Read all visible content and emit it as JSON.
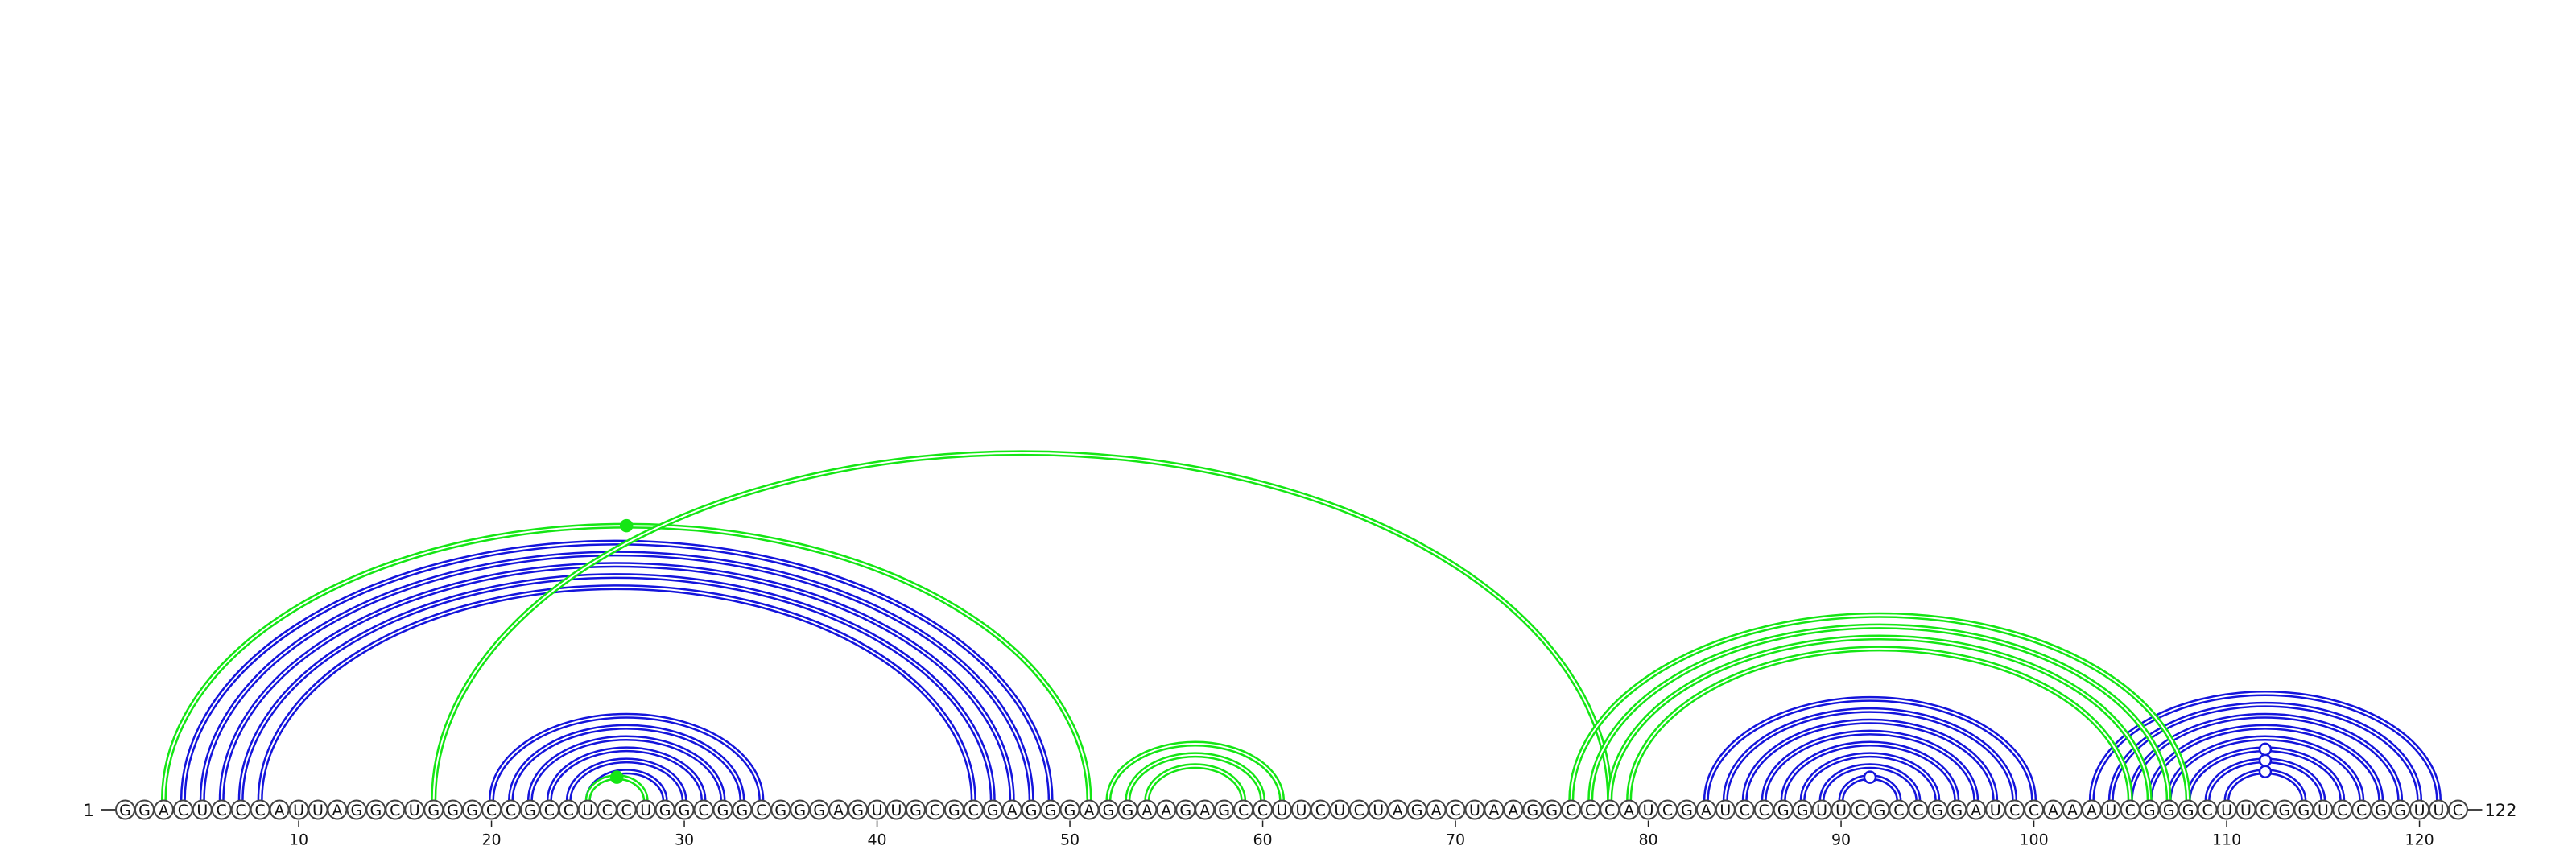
{
  "diagram": {
    "type": "rna-arc-diagram",
    "sequence": "GGACUCCCAUUAGGCUGGGCCGCCUCCUGGCGGCGGGAGUUGCGCGAGGGAGGAAGAGCCUUCUCUAGACUAAGGCCCAUCGAUCCGGUUCGCCGGAUCCAAAUCGGGCUUCGGUCCGGUUC",
    "length": 122,
    "start_label": "1",
    "end_label": "122",
    "tick_labels": [
      "10",
      "20",
      "30",
      "40",
      "50",
      "60",
      "70",
      "80",
      "90",
      "100",
      "110",
      "120"
    ],
    "tick_positions": [
      10,
      20,
      30,
      40,
      50,
      60,
      70,
      80,
      90,
      100,
      110,
      120
    ],
    "colors": {
      "stem": "#1414dc",
      "pseudoknot": "#14e614",
      "nucleotide_border": "#444444"
    },
    "groups": [
      {
        "name": "stem-1",
        "color": "stem",
        "pairs": [
          [
            4,
            49
          ],
          [
            5,
            48
          ],
          [
            6,
            47
          ],
          [
            7,
            46
          ],
          [
            8,
            45
          ]
        ]
      },
      {
        "name": "stem-2",
        "color": "stem",
        "pairs": [
          [
            20,
            34
          ],
          [
            21,
            33
          ],
          [
            22,
            32
          ],
          [
            23,
            31
          ],
          [
            24,
            30
          ],
          [
            25,
            29
          ]
        ]
      },
      {
        "name": "stem-3",
        "color": "stem",
        "pairs": [
          [
            83,
            100
          ],
          [
            84,
            99
          ],
          [
            85,
            98
          ],
          [
            86,
            97
          ],
          [
            87,
            96
          ],
          [
            88,
            95
          ],
          [
            89,
            94
          ],
          [
            90,
            93
          ]
        ]
      },
      {
        "name": "stem-4",
        "color": "stem",
        "pairs": [
          [
            103,
            121
          ],
          [
            104,
            120
          ],
          [
            105,
            119
          ],
          [
            106,
            118
          ],
          [
            107,
            117
          ],
          [
            108,
            116
          ],
          [
            109,
            115
          ],
          [
            110,
            114
          ]
        ]
      },
      {
        "name": "helix-green-1",
        "color": "pseudoknot",
        "pairs": [
          [
            3,
            51
          ],
          [
            25,
            28
          ]
        ]
      },
      {
        "name": "helix-green-2",
        "color": "pseudoknot",
        "pairs": [
          [
            17,
            78
          ]
        ]
      },
      {
        "name": "helix-green-3",
        "color": "pseudoknot",
        "pairs": [
          [
            52,
            61
          ],
          [
            53,
            60
          ],
          [
            54,
            59
          ]
        ]
      },
      {
        "name": "helix-green-4",
        "color": "pseudoknot",
        "pairs": [
          [
            76,
            108
          ],
          [
            77,
            107
          ],
          [
            78,
            106
          ],
          [
            79,
            105
          ]
        ]
      }
    ],
    "markers": [
      {
        "between": [
          3,
          51
        ],
        "style": "filled",
        "color": "pseudoknot"
      },
      {
        "between": [
          25,
          28
        ],
        "style": "filled",
        "color": "pseudoknot"
      },
      {
        "between": [
          90,
          93
        ],
        "style": "open",
        "color": "stem"
      },
      {
        "between": [
          110,
          114
        ],
        "style": "open",
        "color": "stem"
      },
      {
        "between": [
          109,
          115
        ],
        "style": "open",
        "color": "stem"
      },
      {
        "between": [
          108,
          116
        ],
        "style": "open",
        "color": "stem"
      }
    ]
  }
}
